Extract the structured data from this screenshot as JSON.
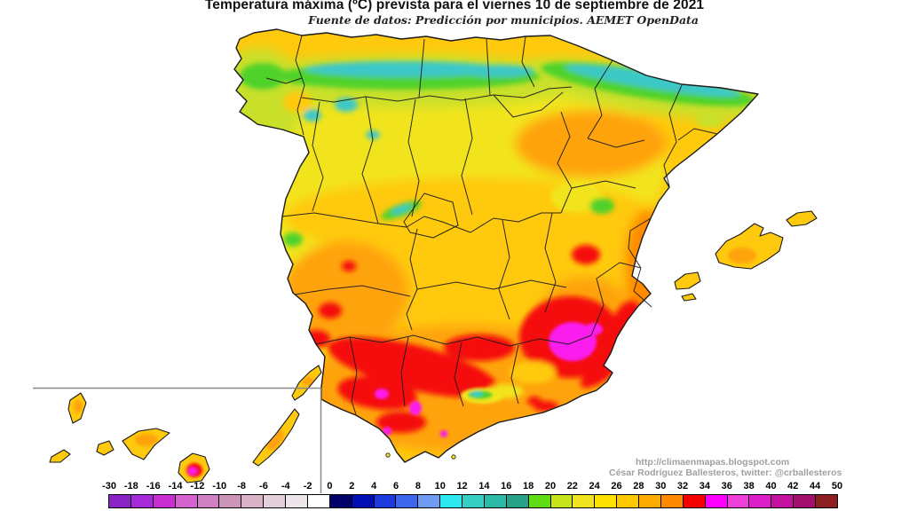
{
  "header": {
    "title": "Temperatura máxima (ºC) prevista para el viernes 10 de septiembre de 2021",
    "subtitle": "Fuente de datos: Predicción por municipios. AEMET OpenData"
  },
  "attribution": {
    "line1": "http://climaenmapas.blogspot.com",
    "line2": "César Rodríguez Ballesteros, twitter: @crballesteros"
  },
  "colorbar": {
    "tick_labels": [
      "-30",
      "-18",
      "-16",
      "-14",
      "-12",
      "-10",
      "-8",
      "-6",
      "-4",
      "-2",
      "0",
      "2",
      "4",
      "6",
      "8",
      "10",
      "12",
      "14",
      "16",
      "18",
      "20",
      "22",
      "24",
      "26",
      "28",
      "30",
      "32",
      "34",
      "36",
      "38",
      "40",
      "42",
      "44",
      "50"
    ],
    "segment_colors": [
      "#8a24c6",
      "#a52bd8",
      "#c82ed2",
      "#d563ce",
      "#cf80c2",
      "#cc95b8",
      "#d8b3c8",
      "#e2cfd9",
      "#ece6ea",
      "#ffffff",
      "#00006b",
      "#000fb4",
      "#1d3bdc",
      "#3e66ea",
      "#6e9cf2",
      "#2ee8f0",
      "#34cec2",
      "#2cbaa6",
      "#26a286",
      "#5fdc14",
      "#c6e41a",
      "#f0e41e",
      "#ffe100",
      "#ffc900",
      "#ffac00",
      "#ff8a00",
      "#f50000",
      "#ff00ff",
      "#ee3fd8",
      "#dc1ec8",
      "#c4109e",
      "#a30f6c",
      "#8e1e20"
    ]
  },
  "map": {
    "palette": {
      "sea": "#ffffff",
      "border": "#1a1a1a",
      "inset_line": "#8a8a8a",
      "yellow": "#f2e41e",
      "yellow_green": "#c9e02a",
      "green": "#4fd22a",
      "cyan": "#3cc8c8",
      "gold": "#ffc90d",
      "orange": "#ffa308",
      "deep_orange": "#ff8a00",
      "red": "#f50808",
      "magenta": "#fb1aee"
    }
  }
}
